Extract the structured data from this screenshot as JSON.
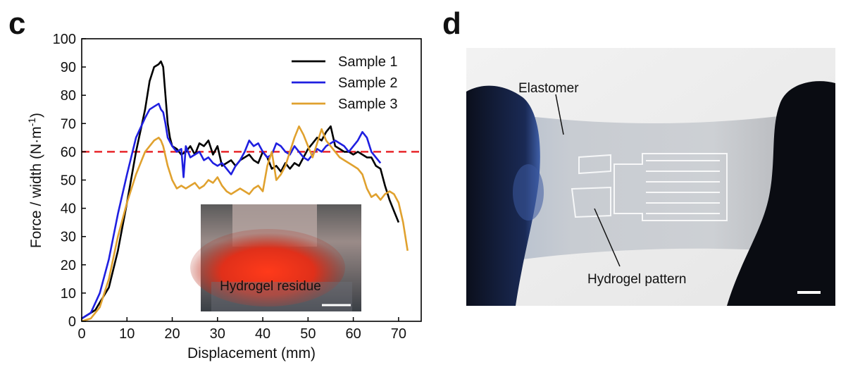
{
  "panels": {
    "c": "c",
    "d": "d"
  },
  "chart_data": {
    "type": "line",
    "xlabel": "Displacement (mm)",
    "ylabel_main": "Force / width (N·m",
    "ylabel_sup": "-1",
    "ylabel_tail": ")",
    "xlim": [
      0,
      75
    ],
    "ylim": [
      0,
      100
    ],
    "xticks": [
      0,
      10,
      20,
      30,
      40,
      50,
      60,
      70
    ],
    "yticks": [
      0,
      10,
      20,
      30,
      40,
      50,
      60,
      70,
      80,
      90,
      100
    ],
    "reference_line": {
      "y": 60,
      "color": "#e8262a",
      "style": "dashed"
    },
    "grid": false,
    "legend_position": "top-right",
    "series": [
      {
        "name": "Sample 1",
        "color": "#000000",
        "x": [
          0,
          3,
          6,
          8,
          10,
          12,
          14,
          15,
          16,
          17,
          17.5,
          18,
          18.5,
          19,
          19.5,
          20,
          21,
          22,
          23,
          24,
          25,
          26,
          27,
          28,
          29,
          30,
          31,
          32,
          33,
          34,
          35,
          36,
          37,
          38,
          39,
          40,
          41,
          42,
          43,
          44,
          45,
          46,
          47,
          48,
          49,
          50,
          51,
          52,
          53,
          54,
          55,
          56,
          57,
          58,
          59,
          60,
          61,
          62,
          63,
          64,
          65,
          66,
          67,
          68,
          69,
          70
        ],
        "y": [
          1,
          4,
          12,
          25,
          42,
          60,
          75,
          85,
          90,
          91,
          92,
          90,
          80,
          70,
          65,
          62,
          61,
          59,
          60,
          62,
          59,
          63,
          62,
          64,
          59,
          62,
          55,
          56,
          57,
          55,
          57,
          58,
          59,
          57,
          56,
          60,
          58,
          54,
          55,
          53,
          56,
          54,
          56,
          55,
          58,
          61,
          63,
          65,
          64,
          67,
          69,
          62,
          61,
          60,
          60,
          59,
          60,
          59,
          58,
          58,
          55,
          54,
          48,
          43,
          39,
          35
        ]
      },
      {
        "name": "Sample 2",
        "color": "#1f1fe0",
        "x": [
          0,
          2,
          4,
          6,
          8,
          10,
          12,
          14,
          15,
          16,
          17,
          17.5,
          18,
          18.5,
          19,
          20,
          21,
          22,
          22.5,
          23,
          24,
          25,
          26,
          27,
          28,
          29,
          30,
          31,
          32,
          33,
          34,
          35,
          36,
          37,
          38,
          39,
          40,
          41,
          42,
          43,
          44,
          45,
          46,
          47,
          48,
          49,
          50,
          51,
          52,
          53,
          54,
          55,
          56,
          57,
          58,
          59,
          60,
          61,
          62,
          63,
          64,
          65,
          66
        ],
        "y": [
          1,
          3,
          10,
          22,
          38,
          52,
          65,
          72,
          75,
          76,
          77,
          75,
          74,
          70,
          65,
          62,
          60,
          61,
          51,
          62,
          58,
          59,
          60,
          57,
          58,
          56,
          55,
          56,
          54,
          52,
          55,
          57,
          60,
          64,
          62,
          63,
          60,
          58,
          59,
          63,
          62,
          60,
          59,
          62,
          60,
          58,
          57,
          59,
          61,
          60,
          62,
          63,
          64,
          63,
          62,
          60,
          62,
          64,
          67,
          65,
          60,
          58,
          56
        ]
      },
      {
        "name": "Sample 3",
        "color": "#e0a12e",
        "x": [
          0,
          2,
          4,
          6,
          8,
          10,
          12,
          14,
          15,
          16,
          17,
          17.5,
          18,
          19,
          20,
          21,
          22,
          23,
          24,
          25,
          26,
          27,
          28,
          29,
          30,
          31,
          32,
          33,
          34,
          35,
          36,
          37,
          38,
          39,
          40,
          41,
          42,
          43,
          44,
          45,
          46,
          47,
          48,
          49,
          50,
          51,
          52,
          53,
          54,
          55,
          56,
          57,
          58,
          59,
          60,
          61,
          62,
          63,
          64,
          65,
          66,
          67,
          68,
          69,
          70,
          71,
          72
        ],
        "y": [
          0,
          1,
          5,
          15,
          30,
          42,
          52,
          60,
          62,
          64,
          65,
          64,
          62,
          55,
          50,
          47,
          48,
          47,
          48,
          49,
          47,
          48,
          50,
          49,
          51,
          48,
          46,
          45,
          46,
          47,
          46,
          45,
          47,
          48,
          46,
          55,
          60,
          50,
          52,
          55,
          60,
          65,
          69,
          66,
          62,
          58,
          63,
          68,
          64,
          62,
          60,
          58,
          57,
          56,
          55,
          54,
          52,
          47,
          44,
          45,
          43,
          45,
          46,
          45,
          42,
          35,
          25
        ]
      }
    ],
    "inset_caption": "Hydrogel residue"
  },
  "photo": {
    "label_elastomer": "Elastomer",
    "label_hydrogel": "Hydrogel pattern"
  }
}
